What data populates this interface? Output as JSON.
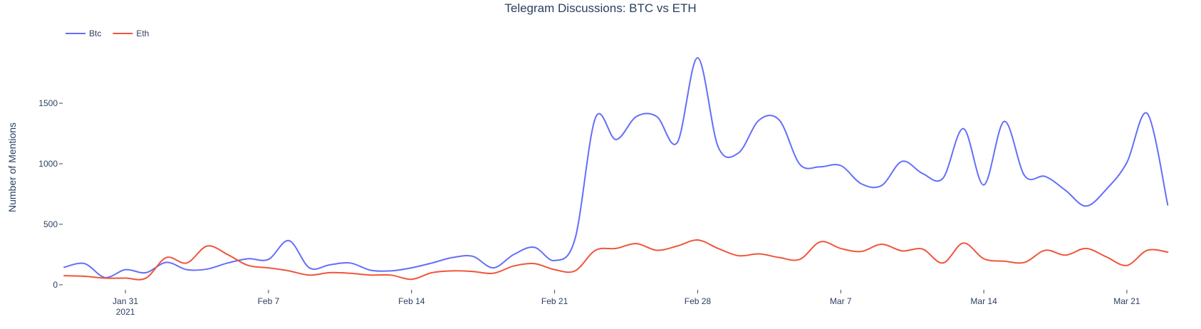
{
  "chart_data": {
    "type": "line",
    "title": "Telegram Discussions: BTC vs ETH",
    "xlabel": "",
    "ylabel": "Number of Mentions",
    "x_start": "2021-01-28",
    "x_end": "2021-03-24",
    "ylim": [
      -30,
      2000
    ],
    "y_ticks": [
      0,
      500,
      1000,
      1500
    ],
    "y_tick_labels": [
      "0",
      "500",
      "1000",
      "1500"
    ],
    "x_ticks": [
      {
        "date": "2021-01-31",
        "label": "Jan 31",
        "sublabel": "2021"
      },
      {
        "date": "2021-02-07",
        "label": "Feb 7",
        "sublabel": ""
      },
      {
        "date": "2021-02-14",
        "label": "Feb 14",
        "sublabel": ""
      },
      {
        "date": "2021-02-21",
        "label": "Feb 21",
        "sublabel": ""
      },
      {
        "date": "2021-02-28",
        "label": "Feb 28",
        "sublabel": ""
      },
      {
        "date": "2021-03-07",
        "label": "Mar 7",
        "sublabel": ""
      },
      {
        "date": "2021-03-14",
        "label": "Mar 14",
        "sublabel": ""
      },
      {
        "date": "2021-03-21",
        "label": "Mar 21",
        "sublabel": ""
      }
    ],
    "legend_placement": "top-left",
    "grid": false,
    "series": [
      {
        "name": "Btc",
        "color": "#636efa",
        "points": [
          [
            "2021-01-28",
            145
          ],
          [
            "2021-01-29",
            175
          ],
          [
            "2021-01-30",
            60
          ],
          [
            "2021-01-31",
            125
          ],
          [
            "2021-02-01",
            100
          ],
          [
            "2021-02-02",
            185
          ],
          [
            "2021-02-03",
            125
          ],
          [
            "2021-02-04",
            130
          ],
          [
            "2021-02-05",
            180
          ],
          [
            "2021-02-06",
            215
          ],
          [
            "2021-02-07",
            210
          ],
          [
            "2021-02-08",
            365
          ],
          [
            "2021-02-09",
            140
          ],
          [
            "2021-02-10",
            165
          ],
          [
            "2021-02-11",
            180
          ],
          [
            "2021-02-12",
            120
          ],
          [
            "2021-02-13",
            115
          ],
          [
            "2021-02-14",
            140
          ],
          [
            "2021-02-15",
            180
          ],
          [
            "2021-02-16",
            225
          ],
          [
            "2021-02-17",
            235
          ],
          [
            "2021-02-18",
            140
          ],
          [
            "2021-02-19",
            250
          ],
          [
            "2021-02-20",
            310
          ],
          [
            "2021-02-21",
            200
          ],
          [
            "2021-02-22",
            380
          ],
          [
            "2021-02-23",
            1380
          ],
          [
            "2021-02-24",
            1200
          ],
          [
            "2021-02-25",
            1390
          ],
          [
            "2021-02-26",
            1390
          ],
          [
            "2021-02-27",
            1175
          ],
          [
            "2021-02-28",
            1875
          ],
          [
            "2021-03-01",
            1140
          ],
          [
            "2021-03-02",
            1090
          ],
          [
            "2021-03-03",
            1360
          ],
          [
            "2021-03-04",
            1360
          ],
          [
            "2021-03-05",
            995
          ],
          [
            "2021-03-06",
            975
          ],
          [
            "2021-03-07",
            985
          ],
          [
            "2021-03-08",
            835
          ],
          [
            "2021-03-09",
            820
          ],
          [
            "2021-03-10",
            1020
          ],
          [
            "2021-03-11",
            920
          ],
          [
            "2021-03-12",
            880
          ],
          [
            "2021-03-13",
            1290
          ],
          [
            "2021-03-14",
            825
          ],
          [
            "2021-03-15",
            1350
          ],
          [
            "2021-03-16",
            900
          ],
          [
            "2021-03-17",
            895
          ],
          [
            "2021-03-18",
            780
          ],
          [
            "2021-03-19",
            650
          ],
          [
            "2021-03-20",
            790
          ],
          [
            "2021-03-21",
            1010
          ],
          [
            "2021-03-22",
            1415
          ],
          [
            "2021-03-23",
            660
          ]
        ]
      },
      {
        "name": "Eth",
        "color": "#ef553b",
        "points": [
          [
            "2021-01-28",
            75
          ],
          [
            "2021-01-29",
            70
          ],
          [
            "2021-01-30",
            55
          ],
          [
            "2021-01-31",
            55
          ],
          [
            "2021-02-01",
            55
          ],
          [
            "2021-02-02",
            225
          ],
          [
            "2021-02-03",
            180
          ],
          [
            "2021-02-04",
            320
          ],
          [
            "2021-02-05",
            250
          ],
          [
            "2021-02-06",
            160
          ],
          [
            "2021-02-07",
            140
          ],
          [
            "2021-02-08",
            115
          ],
          [
            "2021-02-09",
            80
          ],
          [
            "2021-02-10",
            100
          ],
          [
            "2021-02-11",
            95
          ],
          [
            "2021-02-12",
            80
          ],
          [
            "2021-02-13",
            80
          ],
          [
            "2021-02-14",
            45
          ],
          [
            "2021-02-15",
            100
          ],
          [
            "2021-02-16",
            115
          ],
          [
            "2021-02-17",
            110
          ],
          [
            "2021-02-18",
            95
          ],
          [
            "2021-02-19",
            155
          ],
          [
            "2021-02-20",
            175
          ],
          [
            "2021-02-21",
            125
          ],
          [
            "2021-02-22",
            115
          ],
          [
            "2021-02-23",
            285
          ],
          [
            "2021-02-24",
            300
          ],
          [
            "2021-02-25",
            340
          ],
          [
            "2021-02-26",
            285
          ],
          [
            "2021-02-27",
            320
          ],
          [
            "2021-02-28",
            370
          ],
          [
            "2021-03-01",
            300
          ],
          [
            "2021-03-02",
            240
          ],
          [
            "2021-03-03",
            255
          ],
          [
            "2021-03-04",
            225
          ],
          [
            "2021-03-05",
            210
          ],
          [
            "2021-03-06",
            355
          ],
          [
            "2021-03-07",
            300
          ],
          [
            "2021-03-08",
            275
          ],
          [
            "2021-03-09",
            335
          ],
          [
            "2021-03-10",
            280
          ],
          [
            "2021-03-11",
            295
          ],
          [
            "2021-03-12",
            180
          ],
          [
            "2021-03-13",
            345
          ],
          [
            "2021-03-14",
            215
          ],
          [
            "2021-03-15",
            195
          ],
          [
            "2021-03-16",
            185
          ],
          [
            "2021-03-17",
            285
          ],
          [
            "2021-03-18",
            245
          ],
          [
            "2021-03-19",
            300
          ],
          [
            "2021-03-20",
            230
          ],
          [
            "2021-03-21",
            160
          ],
          [
            "2021-03-22",
            285
          ],
          [
            "2021-03-23",
            270
          ]
        ]
      }
    ]
  }
}
